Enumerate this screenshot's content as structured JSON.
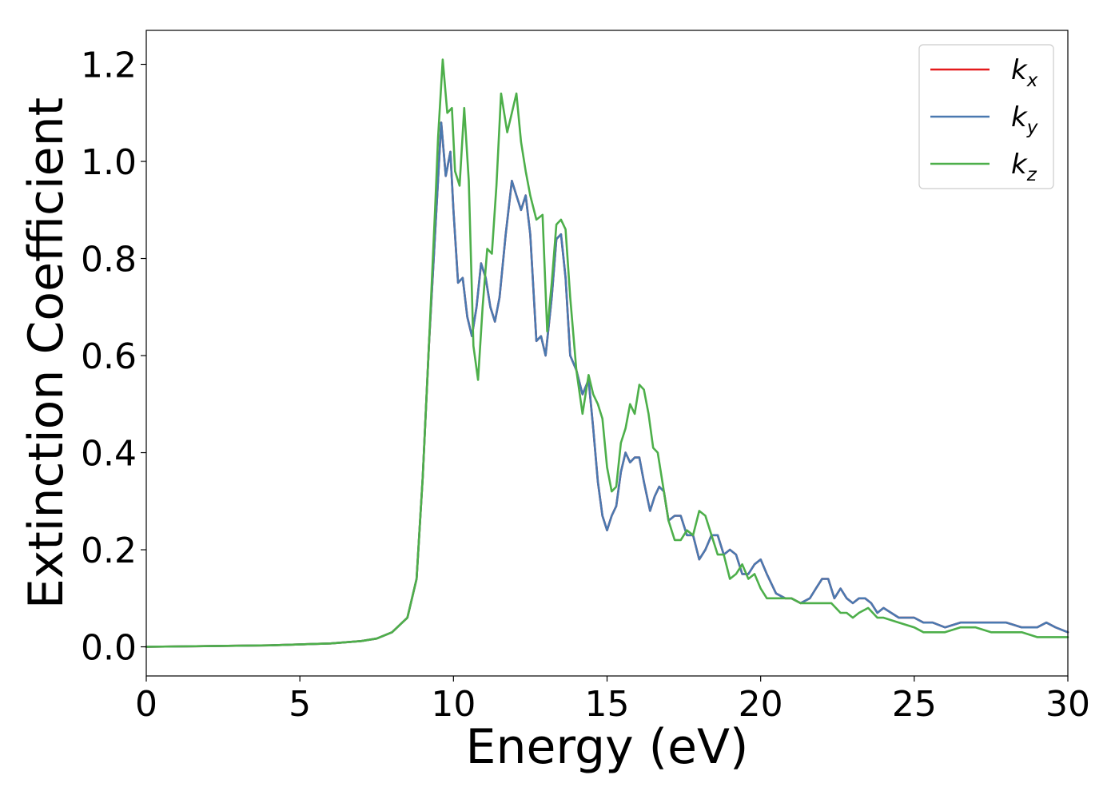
{
  "chart_data": {
    "type": "line",
    "title": "",
    "xlabel": "Energy (eV)",
    "ylabel": "Extinction Coefficient",
    "xlim": [
      0,
      30
    ],
    "ylim": [
      -0.06,
      1.27
    ],
    "xticks": [
      0,
      5,
      10,
      15,
      20,
      25,
      30
    ],
    "xtick_labels": [
      "0",
      "5",
      "10",
      "15",
      "20",
      "25",
      "30"
    ],
    "yticks": [
      0.0,
      0.2,
      0.4,
      0.6,
      0.8,
      1.0,
      1.2
    ],
    "ytick_labels": [
      "0.0",
      "0.2",
      "0.4",
      "0.6",
      "0.8",
      "1.0",
      "1.2"
    ],
    "grid": false,
    "legend_position": "top-right",
    "series": [
      {
        "name": "k_x",
        "label_base": "k",
        "label_sub": "x",
        "color": "#e41a1c",
        "x": [
          0,
          4,
          6,
          7,
          7.5,
          8,
          8.5,
          8.8,
          9.0,
          9.2,
          9.4,
          9.6,
          9.75,
          9.9,
          10.0,
          10.15,
          10.3,
          10.45,
          10.6,
          10.75,
          10.9,
          11.05,
          11.2,
          11.35,
          11.5,
          11.7,
          11.9,
          12.05,
          12.2,
          12.35,
          12.5,
          12.7,
          12.85,
          13.0,
          13.2,
          13.35,
          13.5,
          13.65,
          13.8,
          14.0,
          14.2,
          14.4,
          14.55,
          14.7,
          14.85,
          15.0,
          15.15,
          15.3,
          15.45,
          15.6,
          15.75,
          15.9,
          16.05,
          16.2,
          16.4,
          16.55,
          16.7,
          16.85,
          17.0,
          17.2,
          17.4,
          17.6,
          17.8,
          18.0,
          18.2,
          18.4,
          18.6,
          18.8,
          19.0,
          19.2,
          19.4,
          19.6,
          19.8,
          20.0,
          20.2,
          20.5,
          20.8,
          21.0,
          21.3,
          21.6,
          21.8,
          22.0,
          22.2,
          22.4,
          22.6,
          22.8,
          23.0,
          23.2,
          23.4,
          23.6,
          23.8,
          24.0,
          24.5,
          25.0,
          25.3,
          25.6,
          26.0,
          26.5,
          27.0,
          27.5,
          28.0,
          28.5,
          29.0,
          29.3,
          29.6,
          30.0
        ],
        "y": [
          0.0,
          0.003,
          0.007,
          0.012,
          0.017,
          0.03,
          0.06,
          0.14,
          0.35,
          0.62,
          0.85,
          1.08,
          0.97,
          1.02,
          0.9,
          0.75,
          0.76,
          0.68,
          0.64,
          0.7,
          0.79,
          0.76,
          0.7,
          0.67,
          0.72,
          0.85,
          0.96,
          0.93,
          0.9,
          0.93,
          0.85,
          0.63,
          0.64,
          0.6,
          0.72,
          0.84,
          0.85,
          0.76,
          0.6,
          0.57,
          0.52,
          0.55,
          0.45,
          0.34,
          0.27,
          0.24,
          0.27,
          0.29,
          0.36,
          0.4,
          0.38,
          0.39,
          0.39,
          0.34,
          0.28,
          0.31,
          0.33,
          0.32,
          0.26,
          0.27,
          0.27,
          0.23,
          0.23,
          0.18,
          0.2,
          0.23,
          0.23,
          0.19,
          0.2,
          0.19,
          0.15,
          0.15,
          0.17,
          0.18,
          0.15,
          0.11,
          0.1,
          0.1,
          0.09,
          0.1,
          0.12,
          0.14,
          0.14,
          0.1,
          0.12,
          0.1,
          0.09,
          0.1,
          0.1,
          0.09,
          0.07,
          0.08,
          0.06,
          0.06,
          0.05,
          0.05,
          0.04,
          0.05,
          0.05,
          0.05,
          0.05,
          0.04,
          0.04,
          0.05,
          0.04,
          0.03
        ]
      },
      {
        "name": "k_y",
        "label_base": "k",
        "label_sub": "y",
        "color": "#4a79b0",
        "x": [
          0,
          4,
          6,
          7,
          7.5,
          8,
          8.5,
          8.8,
          9.0,
          9.2,
          9.4,
          9.6,
          9.75,
          9.9,
          10.0,
          10.15,
          10.3,
          10.45,
          10.6,
          10.75,
          10.9,
          11.05,
          11.2,
          11.35,
          11.5,
          11.7,
          11.9,
          12.05,
          12.2,
          12.35,
          12.5,
          12.7,
          12.85,
          13.0,
          13.2,
          13.35,
          13.5,
          13.65,
          13.8,
          14.0,
          14.2,
          14.4,
          14.55,
          14.7,
          14.85,
          15.0,
          15.15,
          15.3,
          15.45,
          15.6,
          15.75,
          15.9,
          16.05,
          16.2,
          16.4,
          16.55,
          16.7,
          16.85,
          17.0,
          17.2,
          17.4,
          17.6,
          17.8,
          18.0,
          18.2,
          18.4,
          18.6,
          18.8,
          19.0,
          19.2,
          19.4,
          19.6,
          19.8,
          20.0,
          20.2,
          20.5,
          20.8,
          21.0,
          21.3,
          21.6,
          21.8,
          22.0,
          22.2,
          22.4,
          22.6,
          22.8,
          23.0,
          23.2,
          23.4,
          23.6,
          23.8,
          24.0,
          24.5,
          25.0,
          25.3,
          25.6,
          26.0,
          26.5,
          27.0,
          27.5,
          28.0,
          28.5,
          29.0,
          29.3,
          29.6,
          30.0
        ],
        "y": [
          0.0,
          0.003,
          0.007,
          0.012,
          0.017,
          0.03,
          0.06,
          0.14,
          0.35,
          0.62,
          0.85,
          1.08,
          0.97,
          1.02,
          0.9,
          0.75,
          0.76,
          0.68,
          0.64,
          0.7,
          0.79,
          0.76,
          0.7,
          0.67,
          0.72,
          0.85,
          0.96,
          0.93,
          0.9,
          0.93,
          0.85,
          0.63,
          0.64,
          0.6,
          0.72,
          0.84,
          0.85,
          0.76,
          0.6,
          0.57,
          0.52,
          0.55,
          0.45,
          0.34,
          0.27,
          0.24,
          0.27,
          0.29,
          0.36,
          0.4,
          0.38,
          0.39,
          0.39,
          0.34,
          0.28,
          0.31,
          0.33,
          0.32,
          0.26,
          0.27,
          0.27,
          0.23,
          0.23,
          0.18,
          0.2,
          0.23,
          0.23,
          0.19,
          0.2,
          0.19,
          0.15,
          0.15,
          0.17,
          0.18,
          0.15,
          0.11,
          0.1,
          0.1,
          0.09,
          0.1,
          0.12,
          0.14,
          0.14,
          0.1,
          0.12,
          0.1,
          0.09,
          0.1,
          0.1,
          0.09,
          0.07,
          0.08,
          0.06,
          0.06,
          0.05,
          0.05,
          0.04,
          0.05,
          0.05,
          0.05,
          0.05,
          0.04,
          0.04,
          0.05,
          0.04,
          0.03
        ]
      },
      {
        "name": "k_z",
        "label_base": "k",
        "label_sub": "z",
        "color": "#4daf4a",
        "x": [
          0,
          4,
          6,
          7,
          7.5,
          8,
          8.5,
          8.8,
          9.0,
          9.2,
          9.4,
          9.5,
          9.65,
          9.8,
          9.95,
          10.05,
          10.2,
          10.35,
          10.5,
          10.65,
          10.8,
          10.95,
          11.1,
          11.25,
          11.4,
          11.55,
          11.75,
          11.9,
          12.05,
          12.2,
          12.35,
          12.5,
          12.7,
          12.9,
          13.05,
          13.2,
          13.35,
          13.5,
          13.65,
          13.8,
          14.0,
          14.2,
          14.4,
          14.55,
          14.7,
          14.85,
          15.0,
          15.15,
          15.3,
          15.45,
          15.6,
          15.75,
          15.9,
          16.05,
          16.2,
          16.35,
          16.5,
          16.65,
          16.8,
          17.0,
          17.2,
          17.4,
          17.6,
          17.8,
          18.0,
          18.2,
          18.4,
          18.6,
          18.8,
          19.0,
          19.2,
          19.4,
          19.6,
          19.8,
          20.0,
          20.2,
          20.5,
          20.8,
          21.0,
          21.3,
          21.6,
          21.8,
          22.0,
          22.3,
          22.6,
          22.8,
          23.0,
          23.2,
          23.5,
          23.8,
          24.0,
          24.5,
          25.0,
          25.3,
          25.6,
          26.0,
          26.5,
          27.0,
          27.5,
          28.0,
          28.5,
          29.0,
          29.3,
          29.6,
          30.0
        ],
        "y": [
          0.0,
          0.003,
          0.007,
          0.012,
          0.017,
          0.03,
          0.06,
          0.14,
          0.35,
          0.62,
          0.9,
          1.05,
          1.21,
          1.1,
          1.11,
          0.98,
          0.95,
          1.11,
          0.96,
          0.62,
          0.55,
          0.7,
          0.82,
          0.81,
          0.95,
          1.14,
          1.06,
          1.1,
          1.14,
          1.04,
          0.98,
          0.93,
          0.88,
          0.89,
          0.65,
          0.75,
          0.87,
          0.88,
          0.86,
          0.72,
          0.57,
          0.48,
          0.56,
          0.52,
          0.5,
          0.47,
          0.37,
          0.32,
          0.33,
          0.42,
          0.45,
          0.5,
          0.48,
          0.54,
          0.53,
          0.48,
          0.41,
          0.4,
          0.34,
          0.26,
          0.22,
          0.22,
          0.24,
          0.23,
          0.28,
          0.27,
          0.23,
          0.19,
          0.19,
          0.14,
          0.15,
          0.17,
          0.14,
          0.15,
          0.12,
          0.1,
          0.1,
          0.1,
          0.1,
          0.09,
          0.09,
          0.09,
          0.09,
          0.09,
          0.07,
          0.07,
          0.06,
          0.07,
          0.08,
          0.06,
          0.06,
          0.05,
          0.04,
          0.03,
          0.03,
          0.03,
          0.04,
          0.04,
          0.03,
          0.03,
          0.03,
          0.02,
          0.02,
          0.02,
          0.02
        ]
      }
    ]
  }
}
